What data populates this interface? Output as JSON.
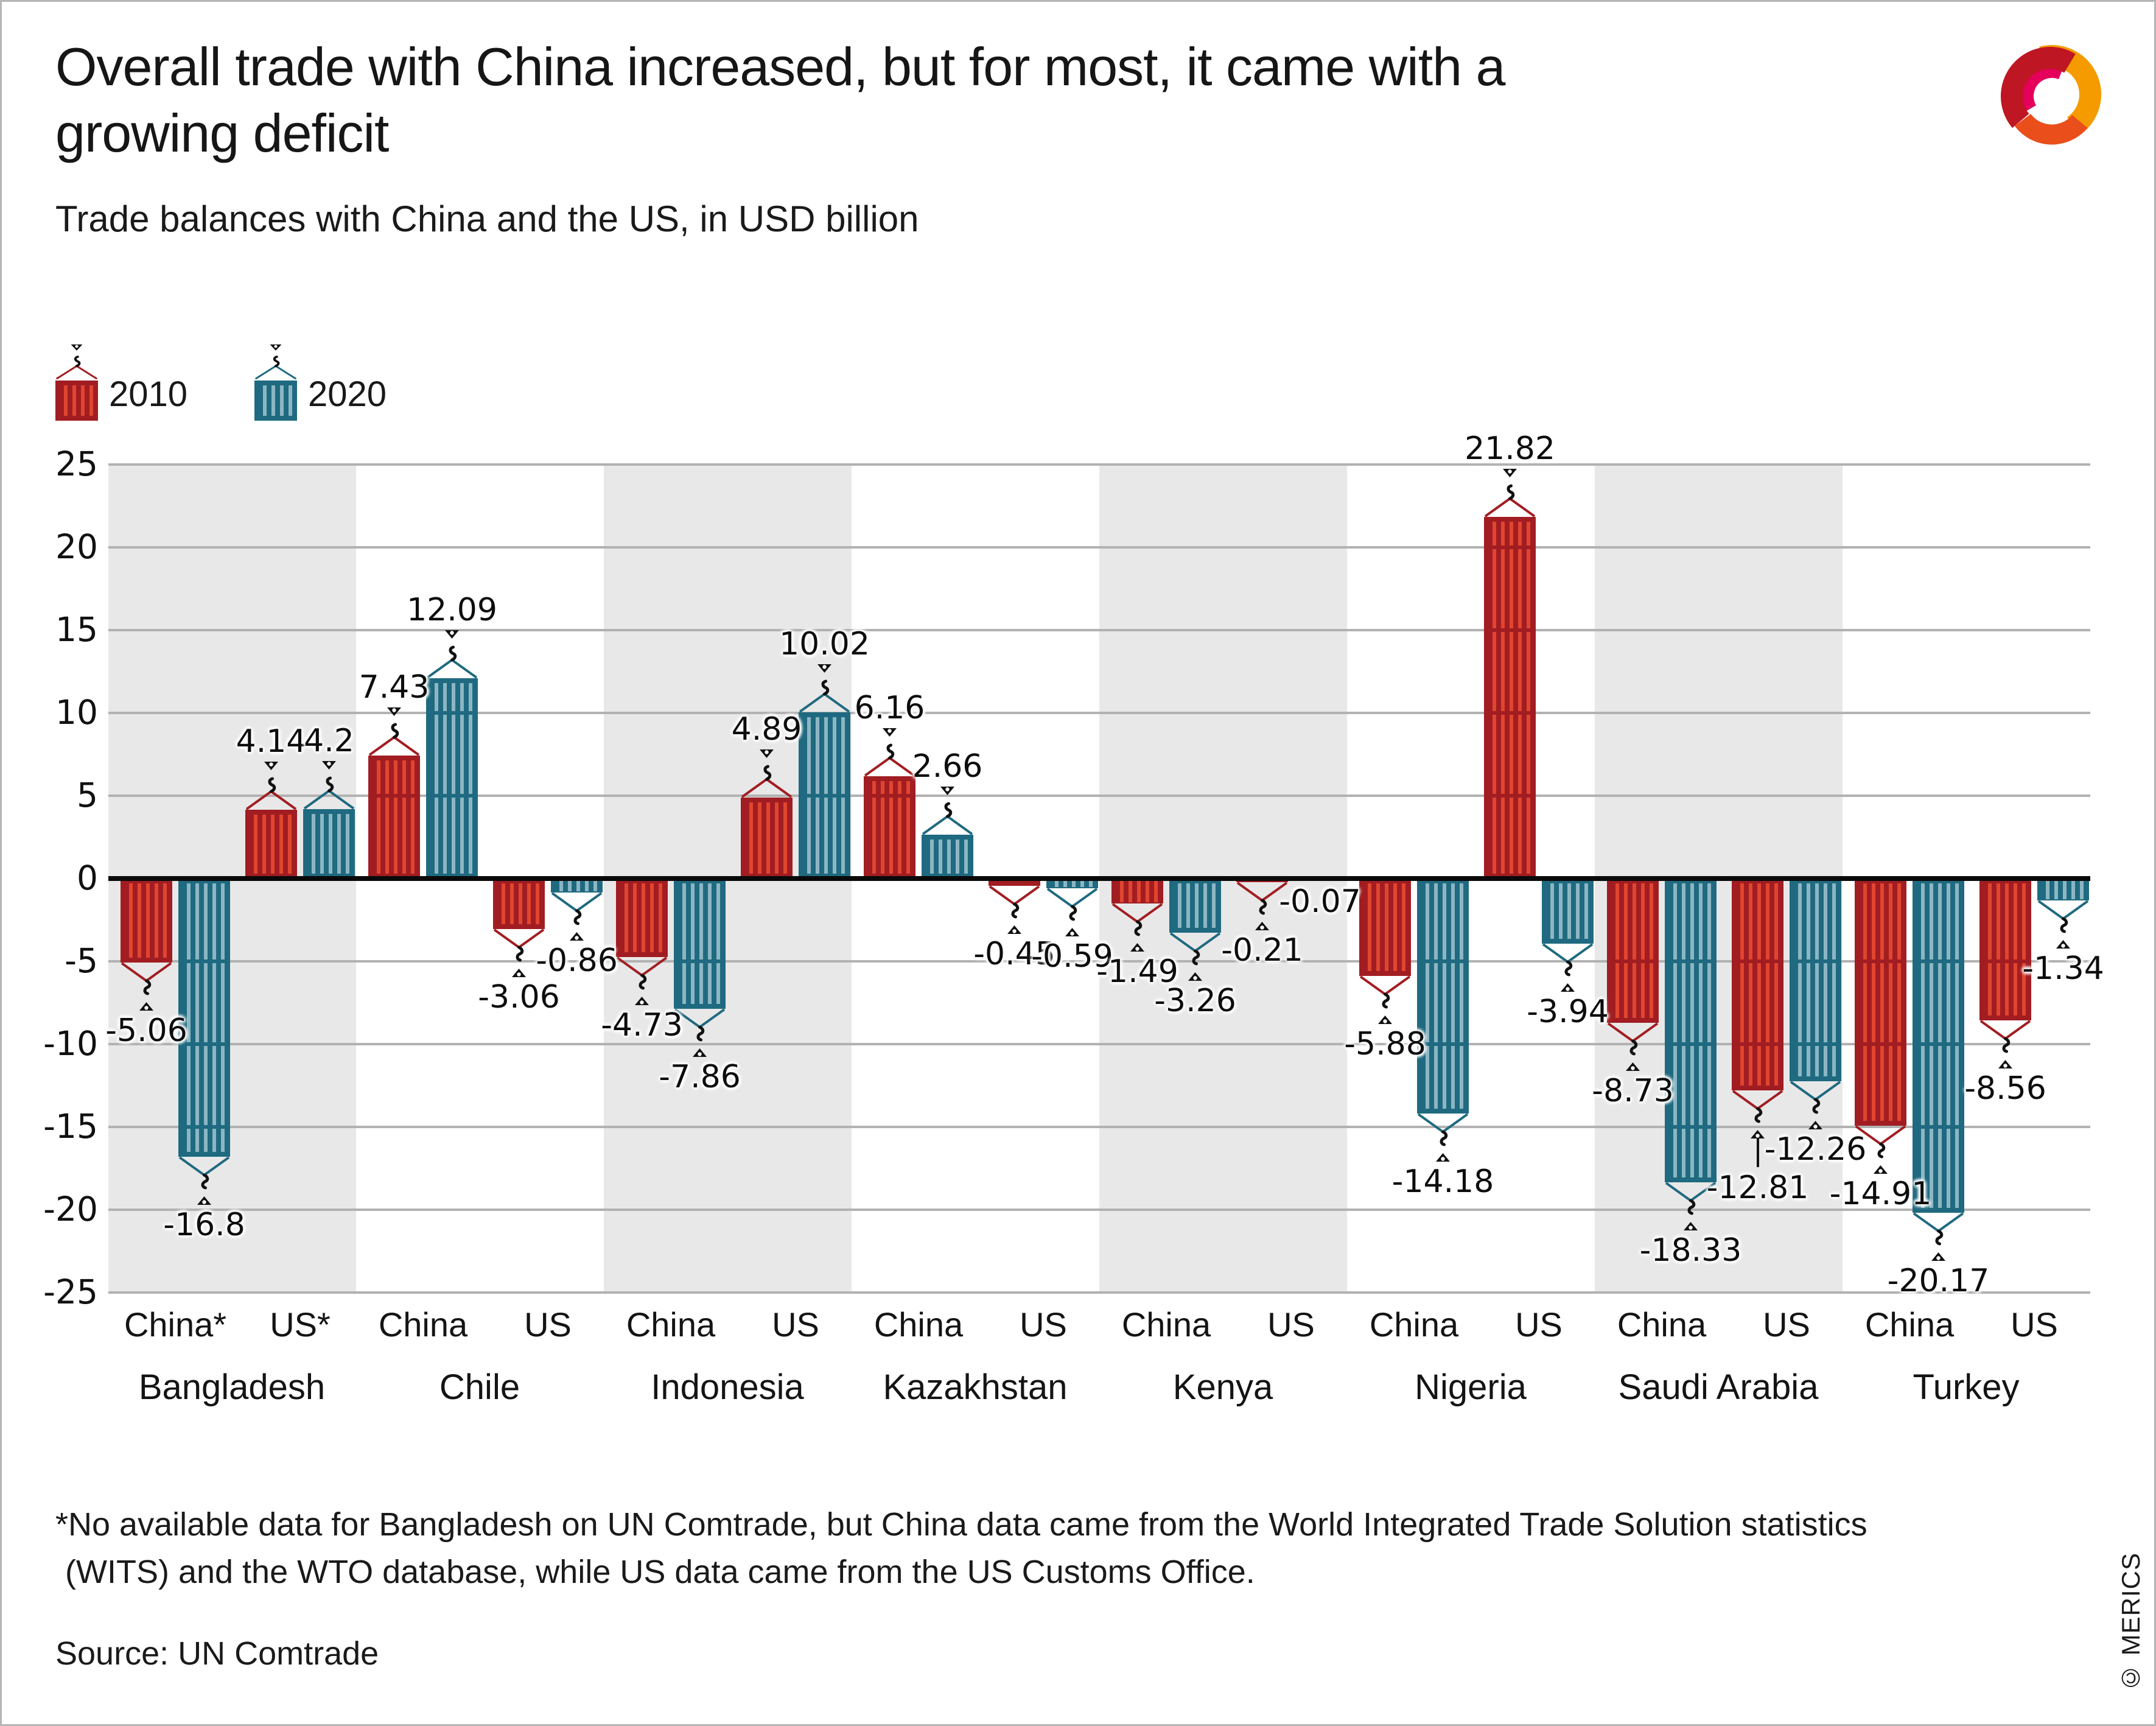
{
  "header": {
    "title_line1": "Overall trade with China increased, but for most, it came with a",
    "title_line2": "growing deficit",
    "subtitle": "Trade balances with China and the US, in USD billion"
  },
  "legend": {
    "items": [
      {
        "label": "2010",
        "series": "2010"
      },
      {
        "label": "2020",
        "series": "2020"
      }
    ]
  },
  "colors": {
    "red_2010_base": "#A11D22",
    "red_2010_stripe": "#E1452F",
    "teal_2020_base": "#1F6A80",
    "teal_2020_stripe": "#8CB6C3",
    "band": "#E9E8E8",
    "grid": "#B2B2B2",
    "zero_line": "#0A0A0A",
    "text": "#191919"
  },
  "chart_data": {
    "type": "bar",
    "title": "Trade balances with China and the US",
    "unit": "USD billion",
    "ylim": [
      -25,
      25
    ],
    "yticks": [
      25,
      20,
      15,
      10,
      5,
      0,
      -5,
      -10,
      -15,
      -20,
      -25
    ],
    "series": [
      "2010",
      "2020"
    ],
    "grid": "on",
    "legend_position": "top-left",
    "countries": [
      {
        "name": "Bangladesh",
        "groups": [
          {
            "label": "China*",
            "bars": [
              {
                "year": "2010",
                "value": -5.06
              },
              {
                "year": "2020",
                "value": -16.8
              }
            ]
          },
          {
            "label": "US*",
            "bars": [
              {
                "year": "2010",
                "value": 4.14
              },
              {
                "year": "2020",
                "value": 4.2
              }
            ]
          }
        ]
      },
      {
        "name": "Chile",
        "groups": [
          {
            "label": "China",
            "bars": [
              {
                "year": "2010",
                "value": 7.43
              },
              {
                "year": "2020",
                "value": 12.09
              }
            ]
          },
          {
            "label": "US",
            "bars": [
              {
                "year": "2010",
                "value": -3.06
              },
              {
                "year": "2020",
                "value": -0.86
              }
            ]
          }
        ]
      },
      {
        "name": "Indonesia",
        "groups": [
          {
            "label": "China",
            "bars": [
              {
                "year": "2010",
                "value": -4.73
              },
              {
                "year": "2020",
                "value": -7.86
              }
            ]
          },
          {
            "label": "US",
            "bars": [
              {
                "year": "2010",
                "value": 4.89
              },
              {
                "year": "2020",
                "value": 10.02
              }
            ]
          }
        ]
      },
      {
        "name": "Kazakhstan",
        "groups": [
          {
            "label": "China",
            "bars": [
              {
                "year": "2010",
                "value": 6.16
              },
              {
                "year": "2020",
                "value": 2.66
              }
            ]
          },
          {
            "label": "US",
            "bars": [
              {
                "year": "2010",
                "value": -0.45
              },
              {
                "year": "2020",
                "value": -0.59
              }
            ]
          }
        ]
      },
      {
        "name": "Kenya",
        "groups": [
          {
            "label": "China",
            "bars": [
              {
                "year": "2010",
                "value": -1.49
              },
              {
                "year": "2020",
                "value": -3.26
              }
            ]
          },
          {
            "label": "US",
            "bars": [
              {
                "year": "2010",
                "value": -0.21
              },
              {
                "year": "2020",
                "value": -0.07,
                "hook": false,
                "near_zero": true
              }
            ]
          }
        ]
      },
      {
        "name": "Nigeria",
        "groups": [
          {
            "label": "China",
            "bars": [
              {
                "year": "2010",
                "value": -5.88
              },
              {
                "year": "2020",
                "value": -14.18
              }
            ]
          },
          {
            "label": "US",
            "bars": [
              {
                "year": "2010",
                "value": 21.82
              },
              {
                "year": "2020",
                "value": -3.94
              }
            ]
          }
        ]
      },
      {
        "name": "Saudi Arabia",
        "groups": [
          {
            "label": "China",
            "bars": [
              {
                "year": "2010",
                "value": -8.73
              },
              {
                "year": "2020",
                "value": -18.33
              }
            ]
          },
          {
            "label": "US",
            "bars": [
              {
                "year": "2010",
                "value": -12.81,
                "leader": true
              },
              {
                "year": "2020",
                "value": -12.26
              }
            ]
          }
        ]
      },
      {
        "name": "Turkey",
        "groups": [
          {
            "label": "China",
            "bars": [
              {
                "year": "2010",
                "value": -14.91
              },
              {
                "year": "2020",
                "value": -20.17
              }
            ]
          },
          {
            "label": "US",
            "bars": [
              {
                "year": "2010",
                "value": -8.56
              },
              {
                "year": "2020",
                "value": -1.34
              }
            ]
          }
        ]
      }
    ]
  },
  "footnote": {
    "line1": "*No available data for Bangladesh on UN Comtrade, but China data came from the World Integrated Trade Solution statistics",
    "line2": "(WITS) and the WTO database, while US data came from the US Customs Office."
  },
  "source": "Source: UN Comtrade",
  "credit": "© MERICS"
}
